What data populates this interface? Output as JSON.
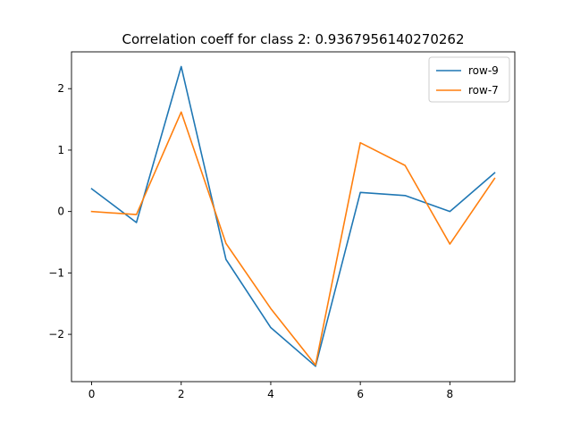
{
  "chart_data": {
    "type": "line",
    "title": "Correlation coeff for class 2: 0.9367956140270262",
    "xlabel": "",
    "ylabel": "",
    "x": [
      0,
      1,
      2,
      3,
      4,
      5,
      6,
      7,
      8,
      9
    ],
    "xlim": [
      -0.45,
      9.45
    ],
    "ylim": [
      -2.77,
      2.6
    ],
    "xticks": [
      0,
      2,
      4,
      6,
      8
    ],
    "xtick_labels": [
      "0",
      "2",
      "4",
      "6",
      "8"
    ],
    "yticks": [
      -2,
      -1,
      0,
      1,
      2
    ],
    "ytick_labels": [
      "−2",
      "−1",
      "0",
      "1",
      "2"
    ],
    "grid": false,
    "legend_position": "upper right",
    "series": [
      {
        "name": "row-9",
        "color": "#1f77b4",
        "values": [
          0.37,
          -0.18,
          2.36,
          -0.78,
          -1.89,
          -2.52,
          0.31,
          0.26,
          0.0,
          0.63
        ]
      },
      {
        "name": "row-7",
        "color": "#ff7f0e",
        "values": [
          0.0,
          -0.05,
          1.62,
          -0.52,
          -1.58,
          -2.5,
          1.12,
          0.75,
          -0.53,
          0.54
        ]
      }
    ]
  }
}
